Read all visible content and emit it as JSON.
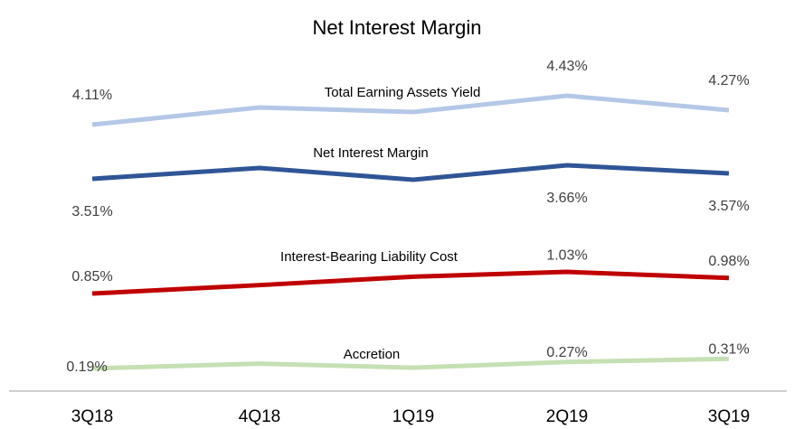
{
  "chart_data": {
    "type": "line",
    "title": "Net Interest Margin",
    "categories": [
      "3Q18",
      "4Q18",
      "1Q19",
      "2Q19",
      "3Q19"
    ],
    "series": [
      {
        "name": "Total Earning Assets Yield",
        "color": "#b4c7e7",
        "values": [
          4.11,
          4.3,
          4.25,
          4.43,
          4.27
        ],
        "value_labels": [
          "4.11%",
          null,
          null,
          "4.43%",
          "4.27%"
        ]
      },
      {
        "name": "Net Interest Margin",
        "color": "#2f5597",
        "values": [
          3.51,
          3.63,
          3.5,
          3.66,
          3.57
        ],
        "value_labels": [
          "3.51%",
          null,
          null,
          "3.66%",
          "3.57%"
        ]
      },
      {
        "name": "Interest-Bearing Liability Cost",
        "color": "#c00000",
        "values": [
          0.85,
          0.92,
          0.99,
          1.03,
          0.98
        ],
        "value_labels": [
          "0.85%",
          null,
          null,
          "1.03%",
          "0.98%"
        ]
      },
      {
        "name": "Accretion",
        "color": "#c5e0b4",
        "values": [
          0.19,
          0.25,
          0.2,
          0.27,
          0.31
        ],
        "value_labels": [
          "0.19%",
          null,
          null,
          "0.27%",
          "0.31%"
        ]
      }
    ]
  }
}
